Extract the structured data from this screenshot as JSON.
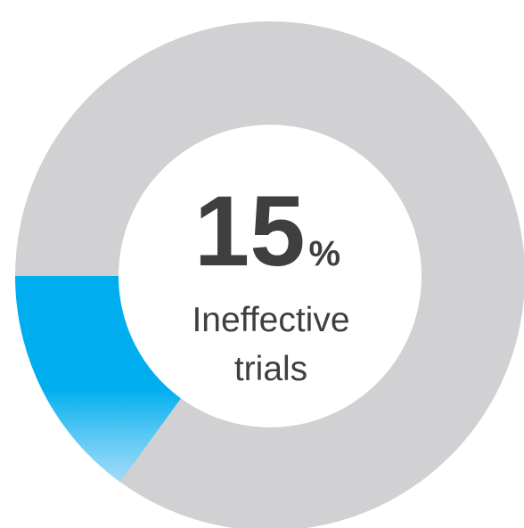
{
  "chart_data": {
    "type": "donut",
    "values": [
      15,
      85
    ],
    "colors": [
      "#00aeef",
      "#d1d0d2"
    ],
    "unit": "%",
    "label_lines": [
      "Ineffective",
      "trials"
    ]
  }
}
